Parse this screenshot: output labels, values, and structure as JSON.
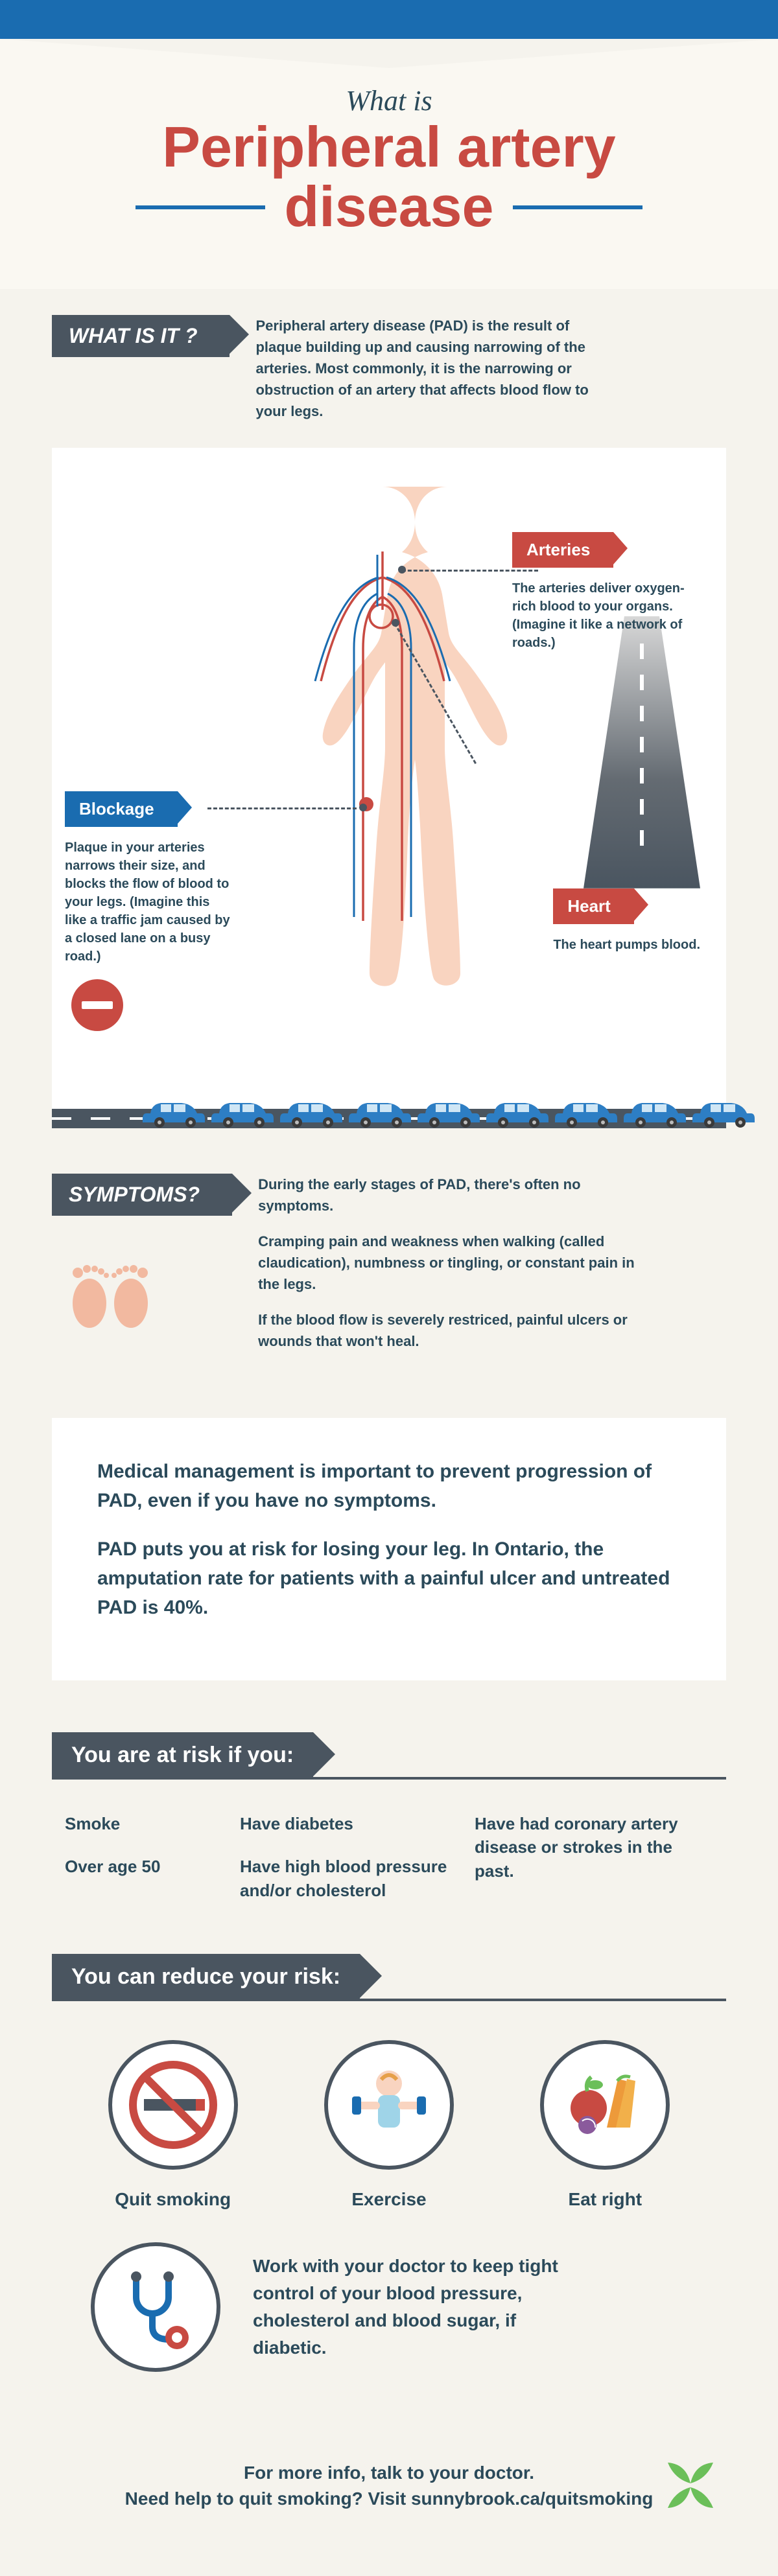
{
  "colors": {
    "blue": "#1a6cb0",
    "red": "#c84a42",
    "dark": "#4a5560",
    "text": "#2b4a5a",
    "cream": "#f5f3ed",
    "white": "#ffffff",
    "green": "#6bbf59",
    "skin": "#f9d4c0",
    "car_blue": "#2d7ec4"
  },
  "header": {
    "pre": "What is",
    "line1": "Peripheral artery",
    "line2": "disease"
  },
  "what_is": {
    "flag": "WHAT IS IT ?",
    "text": "Peripheral artery disease (PAD) is the result of plaque building up and causing narrowing of the arteries. Most commonly, it is the narrowing or obstruction of an artery that affects blood flow to your legs."
  },
  "anatomy": {
    "arteries": {
      "label": "Arteries",
      "desc": "The arteries deliver oxygen-rich blood to your organs. (Imagine it like a network of roads.)"
    },
    "heart": {
      "label": "Heart",
      "desc": "The heart pumps blood."
    },
    "blockage": {
      "label": "Blockage",
      "desc": "Plaque in your arteries narrows their size, and blocks the flow of blood to your legs. (Imagine this like a traffic jam caused by a closed lane on a busy road.)"
    },
    "car_count": 9
  },
  "symptoms": {
    "flag": "SYMPTOMS?",
    "items": [
      "During the early stages of PAD, there's often no symptoms.",
      "Cramping pain and weakness when walking (called claudication), numbness or tingling, or constant pain in the legs.",
      "If the blood flow is severely restriced, painful ulcers or wounds that won't heal."
    ]
  },
  "medical": {
    "p1": "Medical management is important to prevent progression of PAD, even if you have no symptoms.",
    "p2": "PAD puts you at risk for losing your leg. In Ontario, the amputation rate for patients with a painful ulcer and untreated PAD is 40%."
  },
  "risk": {
    "title": "You are at risk if you:",
    "items": [
      "Smoke",
      "Have diabetes",
      "Have had coronary artery disease or strokes in the past.",
      "Over age 50",
      "Have high blood pressure and/or cholesterol"
    ]
  },
  "reduce": {
    "title": "You can reduce your risk:",
    "items": [
      {
        "icon": "no-smoking",
        "label": "Quit smoking"
      },
      {
        "icon": "exercise",
        "label": "Exercise"
      },
      {
        "icon": "eat-right",
        "label": "Eat right"
      }
    ],
    "doctor": "Work with your doctor to keep tight control of your blood pressure, cholesterol and blood sugar, if diabetic."
  },
  "footer": {
    "line1": "For more info, talk to your doctor.",
    "line2": "Need help to quit smoking? Visit sunnybrook.ca/quitsmoking"
  }
}
